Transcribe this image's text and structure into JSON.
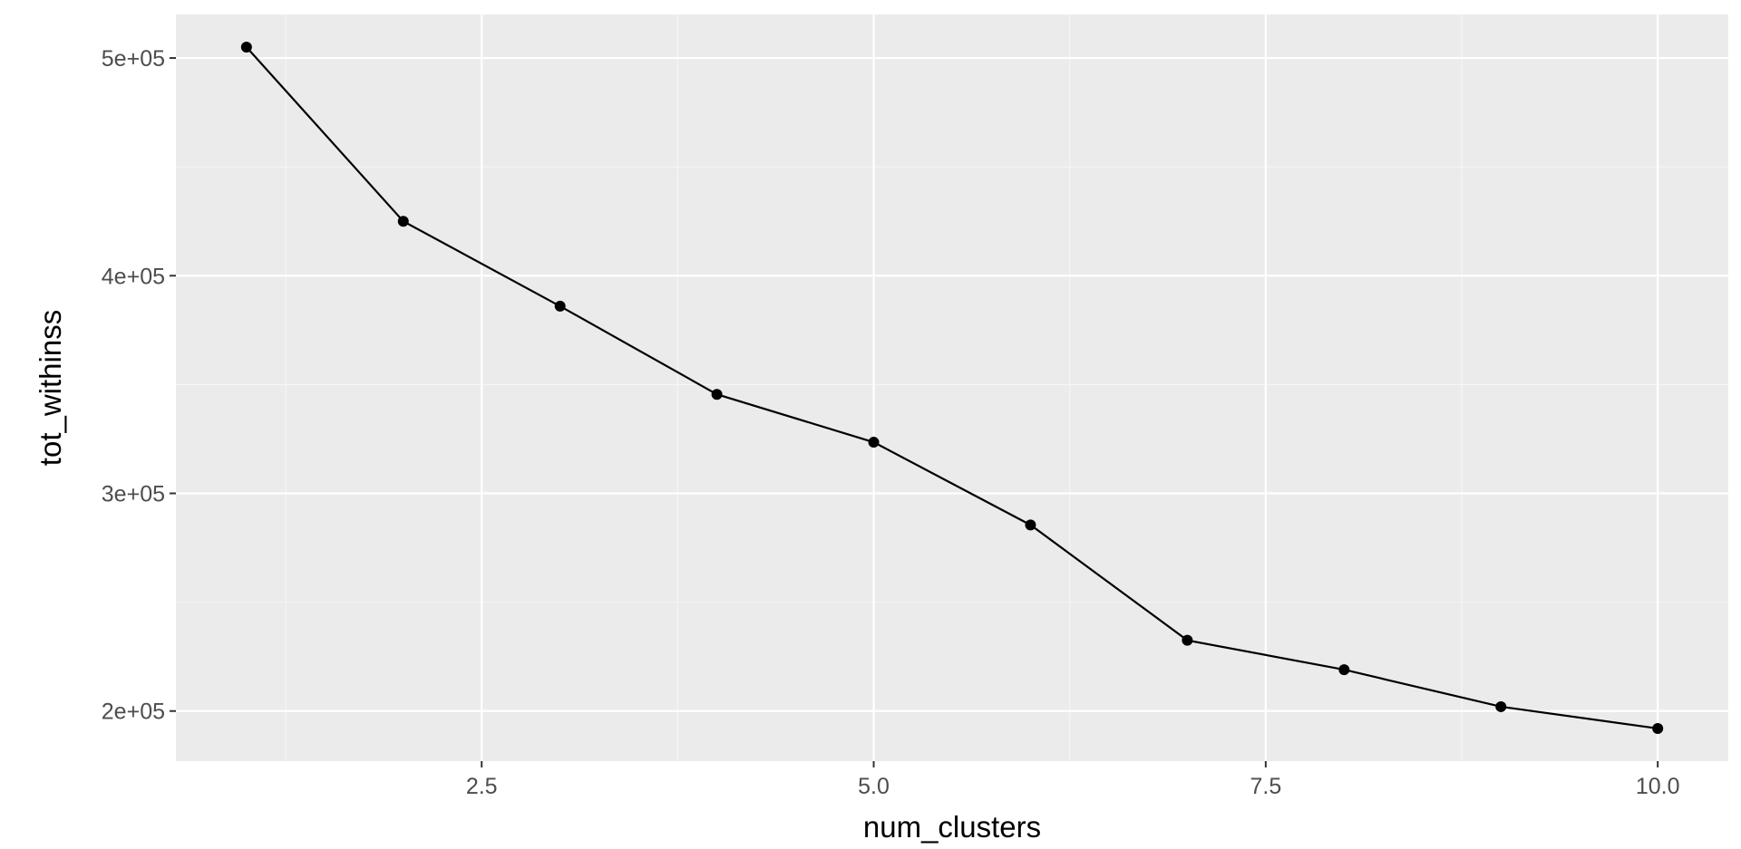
{
  "chart_data": {
    "type": "line",
    "title": "",
    "xlabel": "num_clusters",
    "ylabel": "tot_withinss",
    "x": [
      1,
      2,
      3,
      4,
      5,
      6,
      7,
      8,
      9,
      10
    ],
    "series": [
      {
        "values": [
          505000,
          425000,
          386000,
          345500,
          323500,
          285500,
          232500,
          219000,
          202000,
          192000
        ],
        "color": "#000000"
      }
    ],
    "xlim": [
      0.55,
      10.45
    ],
    "ylim": [
      177000,
      520000
    ],
    "xticks": [
      2.5,
      5.0,
      7.5,
      10.0
    ],
    "xtick_labels": [
      "2.5",
      "5.0",
      "7.5",
      "10.0"
    ],
    "yticks": [
      200000,
      300000,
      400000,
      500000
    ],
    "ytick_labels": [
      "2e+05",
      "3e+05",
      "4e+05",
      "5e+05"
    ],
    "grid": true,
    "panel_background": "#ebebeb",
    "grid_color": "#ffffff",
    "legend": "none"
  }
}
